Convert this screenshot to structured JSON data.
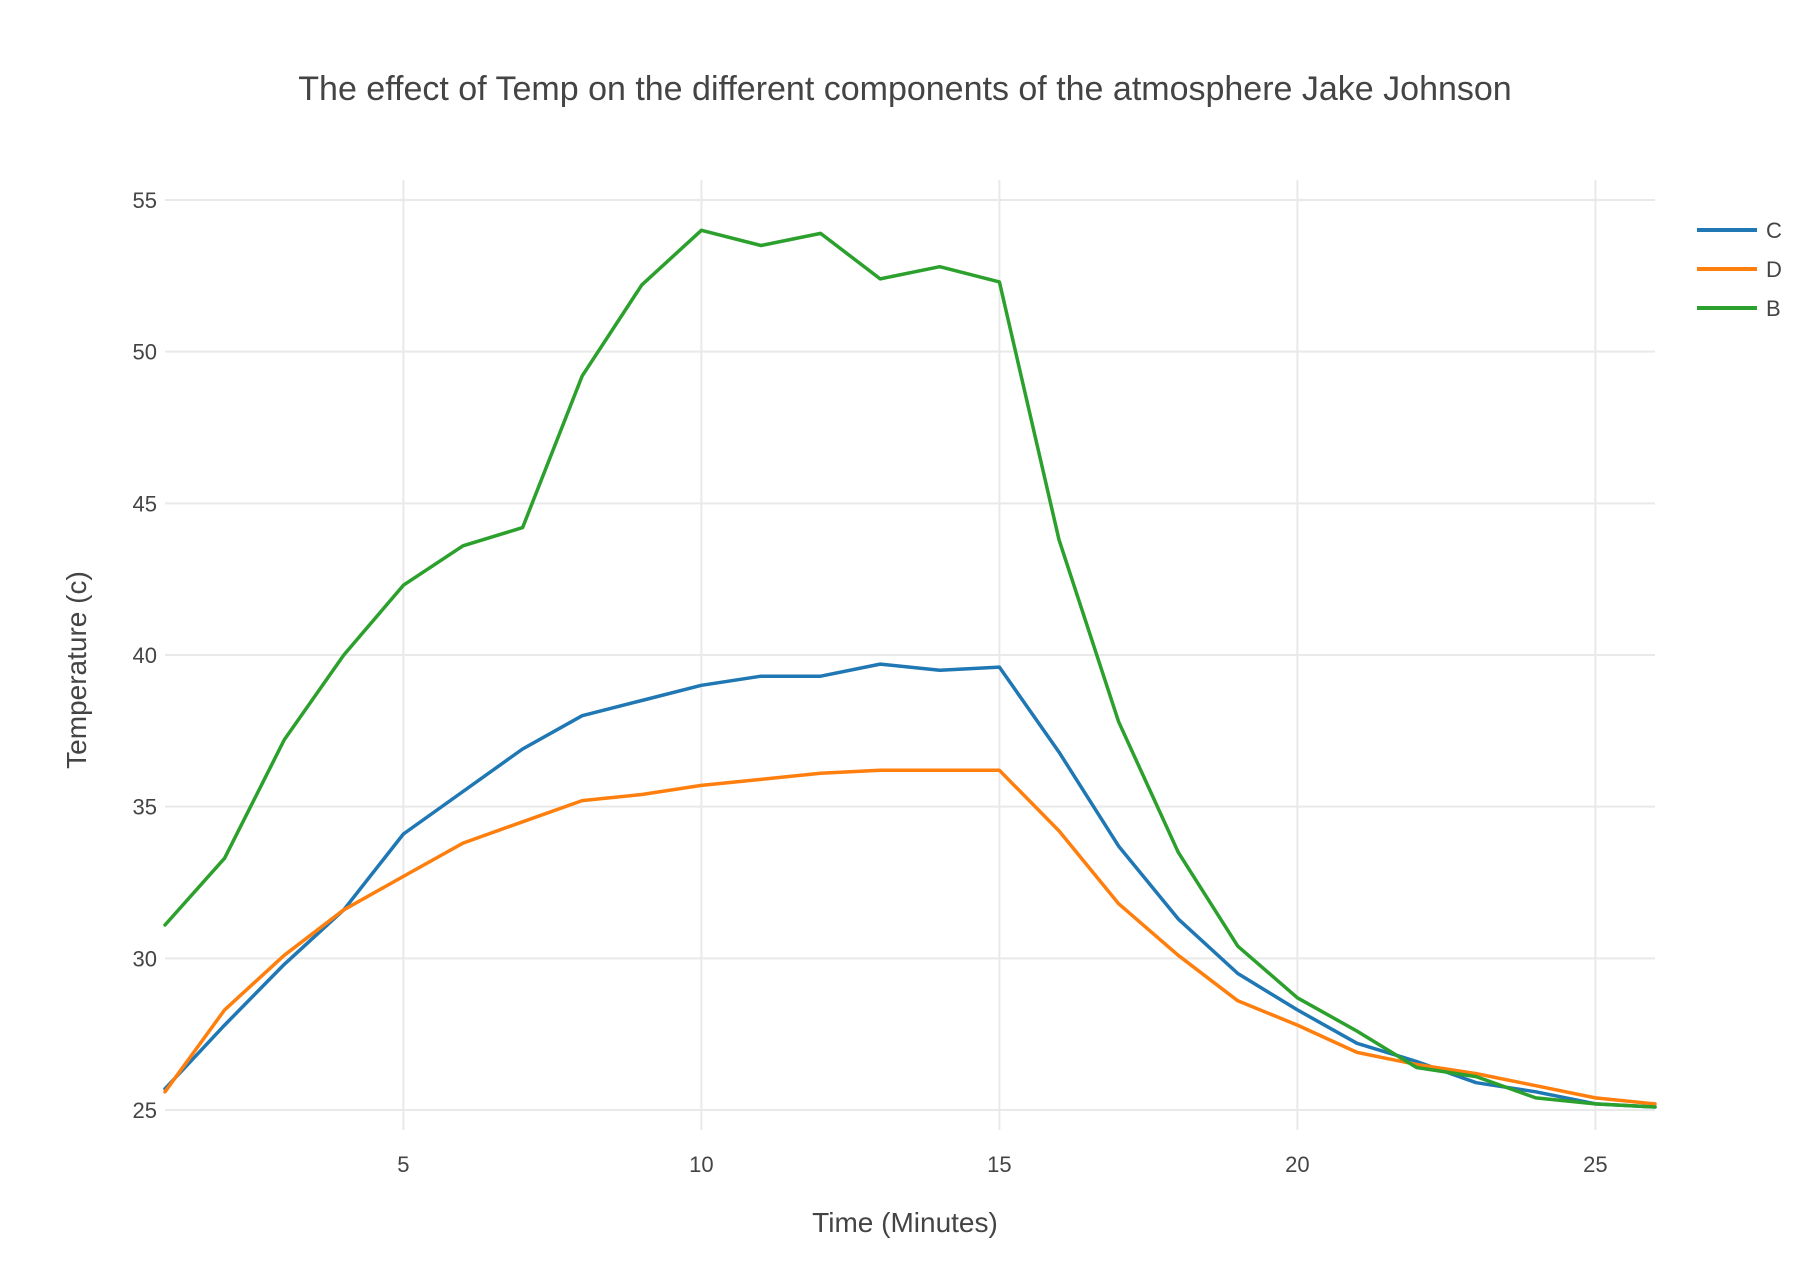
{
  "chart_data": {
    "type": "line",
    "title": "The effect of Temp on the different components of the atmosphere Jake Johnson",
    "xlabel": "Time (Minutes)",
    "ylabel": "Temperature (c)",
    "xlim": [
      1,
      26
    ],
    "ylim": [
      25,
      55
    ],
    "x_ticks": [
      5,
      10,
      15,
      20,
      25
    ],
    "y_ticks": [
      25,
      30,
      35,
      40,
      45,
      50,
      55
    ],
    "grid": true,
    "legend_position": "top-right",
    "x": [
      1,
      2,
      3,
      4,
      5,
      6,
      7,
      8,
      9,
      10,
      11,
      12,
      13,
      14,
      15,
      16,
      17,
      18,
      19,
      20,
      21,
      22,
      23,
      24,
      25,
      26
    ],
    "series": [
      {
        "name": "C",
        "color": "#1f77b4",
        "values": [
          25.7,
          27.8,
          29.8,
          31.6,
          34.1,
          35.5,
          36.9,
          38.0,
          38.5,
          39.0,
          39.3,
          39.3,
          39.7,
          39.5,
          39.6,
          36.8,
          33.7,
          31.3,
          29.5,
          28.3,
          27.2,
          26.6,
          25.9,
          25.6,
          25.2,
          25.1
        ]
      },
      {
        "name": "D",
        "color": "#ff7f0e",
        "values": [
          25.6,
          28.3,
          30.1,
          31.6,
          32.7,
          33.8,
          34.5,
          35.2,
          35.4,
          35.7,
          35.9,
          36.1,
          36.2,
          36.2,
          36.2,
          34.2,
          31.8,
          30.1,
          28.6,
          27.8,
          26.9,
          26.5,
          26.2,
          25.8,
          25.4,
          25.2
        ]
      },
      {
        "name": "B",
        "color": "#2ca02c",
        "values": [
          31.1,
          33.3,
          37.2,
          40.0,
          42.3,
          43.6,
          44.2,
          49.2,
          52.2,
          54.0,
          53.5,
          53.9,
          52.4,
          52.8,
          52.3,
          43.8,
          37.8,
          33.5,
          30.4,
          28.7,
          27.6,
          26.4,
          26.1,
          25.4,
          25.2,
          25.1
        ]
      }
    ]
  }
}
